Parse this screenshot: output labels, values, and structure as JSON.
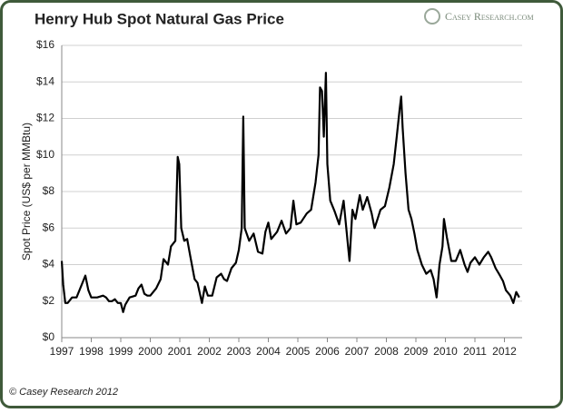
{
  "chart_data": {
    "type": "line",
    "title": "Henry Hub Spot Natural Gas Price",
    "ylabel": "Spot Price (US$ per MMBtu)",
    "brand": "Casey Research.com",
    "footer": "© Casey Research 2012",
    "x": [
      1997.0,
      1997.05,
      1997.12,
      1997.2,
      1997.35,
      1997.5,
      1997.7,
      1997.8,
      1997.9,
      1998.0,
      1998.2,
      1998.4,
      1998.5,
      1998.6,
      1998.7,
      1998.8,
      1998.9,
      1999.0,
      1999.08,
      1999.15,
      1999.3,
      1999.5,
      1999.6,
      1999.7,
      1999.8,
      1999.9,
      2000.0,
      2000.2,
      2000.35,
      2000.45,
      2000.6,
      2000.7,
      2000.85,
      2000.93,
      2000.98,
      2001.05,
      2001.15,
      2001.25,
      2001.35,
      2001.5,
      2001.6,
      2001.75,
      2001.85,
      2001.95,
      2002.1,
      2002.25,
      2002.4,
      2002.5,
      2002.6,
      2002.75,
      2002.9,
      2003.0,
      2003.1,
      2003.15,
      2003.2,
      2003.35,
      2003.5,
      2003.65,
      2003.8,
      2003.9,
      2004.0,
      2004.1,
      2004.3,
      2004.45,
      2004.6,
      2004.75,
      2004.85,
      2004.95,
      2005.1,
      2005.3,
      2005.45,
      2005.6,
      2005.7,
      2005.75,
      2005.82,
      2005.88,
      2005.95,
      2006.0,
      2006.1,
      2006.25,
      2006.4,
      2006.55,
      2006.7,
      2006.75,
      2006.85,
      2006.95,
      2007.1,
      2007.2,
      2007.35,
      2007.5,
      2007.6,
      2007.7,
      2007.8,
      2007.95,
      2008.1,
      2008.25,
      2008.35,
      2008.45,
      2008.5,
      2008.55,
      2008.65,
      2008.75,
      2008.85,
      2008.95,
      2009.05,
      2009.2,
      2009.35,
      2009.5,
      2009.6,
      2009.7,
      2009.8,
      2009.9,
      2009.95,
      2010.05,
      2010.2,
      2010.35,
      2010.5,
      2010.65,
      2010.75,
      2010.85,
      2011.0,
      2011.15,
      2011.3,
      2011.45,
      2011.55,
      2011.7,
      2011.85,
      2011.95,
      2012.05,
      2012.2,
      2012.3,
      2012.4,
      2012.5
    ],
    "series": [
      {
        "name": "Spot Price",
        "color": "#000000",
        "values": [
          4.2,
          2.9,
          1.9,
          1.9,
          2.2,
          2.2,
          3.0,
          3.4,
          2.6,
          2.2,
          2.2,
          2.3,
          2.2,
          2.0,
          2.0,
          2.1,
          1.9,
          1.9,
          1.4,
          1.8,
          2.2,
          2.3,
          2.7,
          2.9,
          2.4,
          2.3,
          2.3,
          2.7,
          3.2,
          4.3,
          4.0,
          5.0,
          5.3,
          9.9,
          9.5,
          6.0,
          5.3,
          5.4,
          4.5,
          3.2,
          3.0,
          1.9,
          2.8,
          2.3,
          2.3,
          3.3,
          3.5,
          3.2,
          3.1,
          3.8,
          4.1,
          4.8,
          6.0,
          12.1,
          6.0,
          5.3,
          5.7,
          4.7,
          4.6,
          5.8,
          6.3,
          5.4,
          5.8,
          6.4,
          5.7,
          6.0,
          7.5,
          6.2,
          6.3,
          6.8,
          7.0,
          8.5,
          10.0,
          13.7,
          13.5,
          11.0,
          14.5,
          9.5,
          7.5,
          6.9,
          6.2,
          7.5,
          5.0,
          4.2,
          7.0,
          6.5,
          7.8,
          7.0,
          7.7,
          6.8,
          6.0,
          6.5,
          7.0,
          7.2,
          8.2,
          9.5,
          11.0,
          12.5,
          13.2,
          11.5,
          9.0,
          7.0,
          6.5,
          5.7,
          4.8,
          4.0,
          3.5,
          3.7,
          3.2,
          2.2,
          4.0,
          5.0,
          6.5,
          5.5,
          4.2,
          4.2,
          4.8,
          4.0,
          3.6,
          4.1,
          4.4,
          4.0,
          4.4,
          4.7,
          4.4,
          3.8,
          3.4,
          3.1,
          2.6,
          2.3,
          1.9,
          2.5,
          2.2
        ]
      }
    ],
    "xlim": [
      1997,
      2012.6
    ],
    "xticks": [
      1997,
      1998,
      1999,
      2000,
      2001,
      2002,
      2003,
      2004,
      2005,
      2006,
      2007,
      2008,
      2009,
      2010,
      2011,
      2012
    ],
    "ylim": [
      0,
      16
    ],
    "yticks": [
      {
        "value": 0,
        "label": "$0"
      },
      {
        "value": 2,
        "label": "$2"
      },
      {
        "value": 4,
        "label": "$4"
      },
      {
        "value": 6,
        "label": "$6"
      },
      {
        "value": 8,
        "label": "$8"
      },
      {
        "value": 10,
        "label": "$10"
      },
      {
        "value": 12,
        "label": "$12"
      },
      {
        "value": 14,
        "label": "$14"
      },
      {
        "value": 16,
        "label": "$16"
      }
    ],
    "grid": true
  }
}
